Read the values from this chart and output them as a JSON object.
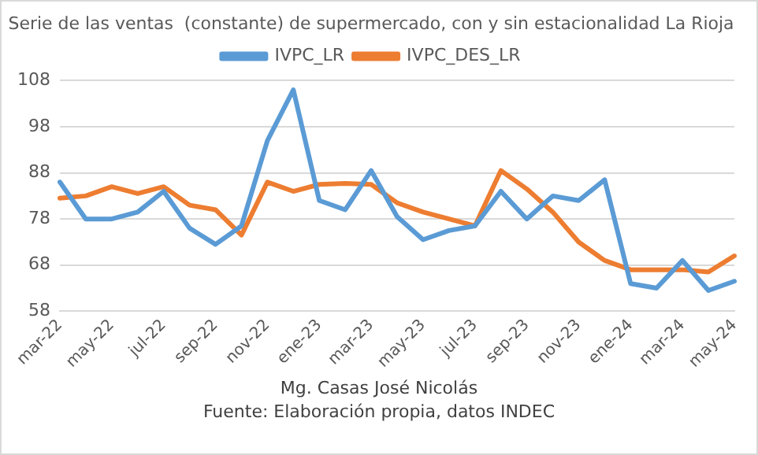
{
  "chart_data": {
    "type": "line",
    "title": "Serie de las ventas  (constante) de supermercado, con y sin estacionalidad La Rioja",
    "categories": [
      "mar-22",
      null,
      "may-22",
      null,
      "jul-22",
      null,
      "sep-22",
      null,
      "nov-22",
      null,
      "ene-23",
      null,
      "mar-23",
      null,
      "may-23",
      null,
      "jul-23",
      null,
      "sep-23",
      null,
      "nov-23",
      null,
      "ene-24",
      null,
      "mar-24",
      null,
      "may-24"
    ],
    "series": [
      {
        "name": "IVPC_LR",
        "color": "#5b9bd5",
        "values": [
          86,
          78,
          78,
          79.5,
          84,
          76,
          72.5,
          76.5,
          95,
          106,
          82,
          80,
          88.5,
          78.5,
          73.5,
          75.5,
          76.5,
          84,
          78,
          83,
          82,
          86.5,
          64,
          63,
          69,
          62.5,
          64.5
        ]
      },
      {
        "name": "IVPC_DES_LR",
        "color": "#ed7d31",
        "values": [
          82.5,
          83,
          85,
          83.5,
          85,
          81,
          80,
          74.5,
          86,
          84,
          85.5,
          85.7,
          85.5,
          81.5,
          79.5,
          78,
          76.5,
          88.5,
          84.5,
          79.5,
          73,
          69,
          67,
          67,
          67,
          66.5,
          70
        ]
      }
    ],
    "ylim": [
      58,
      108
    ],
    "yticks": [
      58,
      68,
      78,
      88,
      98,
      108
    ],
    "grid": "y",
    "legend": "top",
    "marker": "none",
    "line_style": "solid",
    "annotations": [
      "Mg. Casas José Nicolás",
      "Fuente:  Elaboración propia, datos INDEC"
    ]
  }
}
